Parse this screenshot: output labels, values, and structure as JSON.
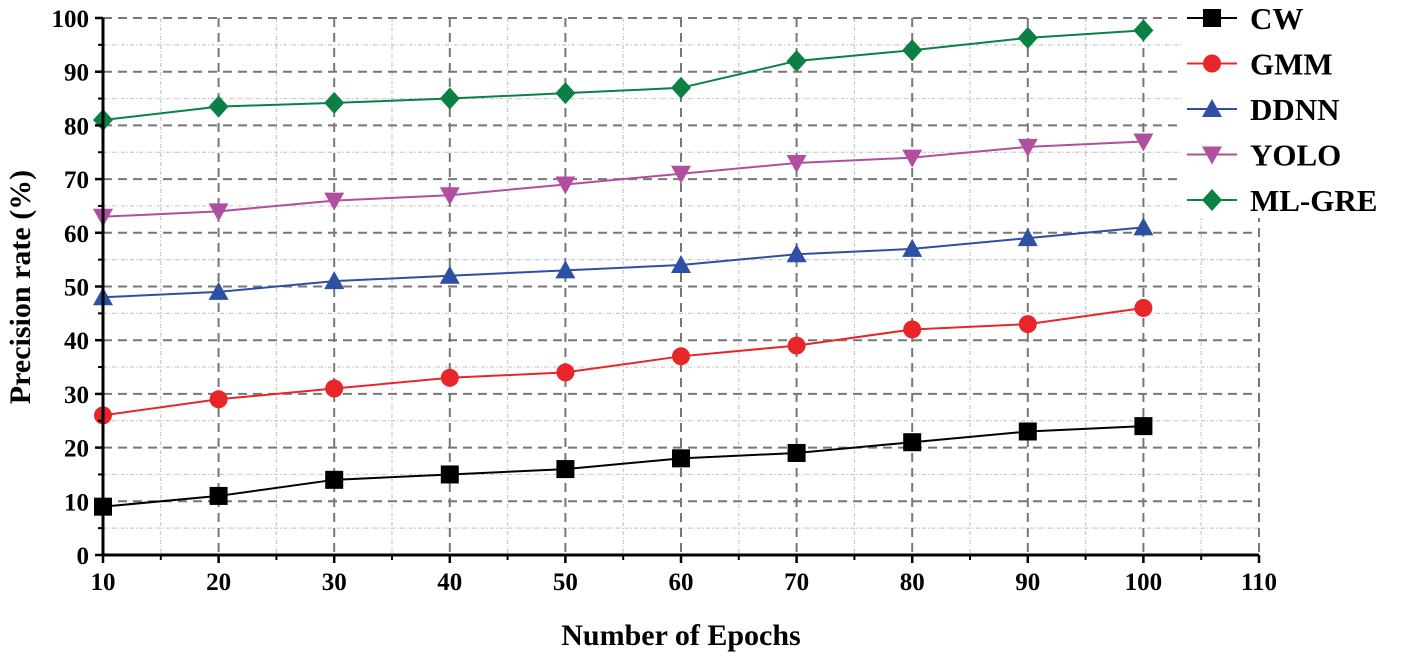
{
  "chart_data": {
    "type": "line",
    "title": "",
    "xlabel": "Number of Epochs",
    "ylabel": "Precision rate (%)",
    "xlim": [
      10,
      110
    ],
    "ylim": [
      0,
      100
    ],
    "xticks": [
      10,
      20,
      30,
      40,
      50,
      60,
      70,
      80,
      90,
      100,
      110
    ],
    "yticks": [
      0,
      10,
      20,
      30,
      40,
      50,
      60,
      70,
      80,
      90,
      100
    ],
    "grid": true,
    "legend_position": "top-right",
    "x": [
      10,
      20,
      30,
      40,
      50,
      60,
      70,
      80,
      90,
      100
    ],
    "series": [
      {
        "name": "CW",
        "color": "#000000",
        "marker": "square",
        "values": [
          9,
          11,
          14,
          15,
          16,
          18,
          19,
          21,
          23,
          24
        ]
      },
      {
        "name": "GMM",
        "color": "#e8262a",
        "marker": "circle",
        "values": [
          26,
          29,
          31,
          33,
          34,
          37,
          39,
          42,
          43,
          46
        ]
      },
      {
        "name": "DDNN",
        "color": "#2e4fa3",
        "marker": "triangle-up",
        "values": [
          48,
          49,
          51,
          52,
          53,
          54,
          56,
          57,
          59,
          61
        ]
      },
      {
        "name": "YOLO",
        "color": "#b04fa0",
        "marker": "triangle-down",
        "values": [
          63,
          64,
          66,
          67,
          69,
          71,
          73,
          74,
          76,
          77
        ]
      },
      {
        "name": "ML-GRE",
        "color": "#0b8043",
        "marker": "diamond",
        "values": [
          81,
          83.5,
          84.2,
          85,
          86,
          87,
          92,
          94,
          96.3,
          97.7
        ]
      }
    ]
  }
}
